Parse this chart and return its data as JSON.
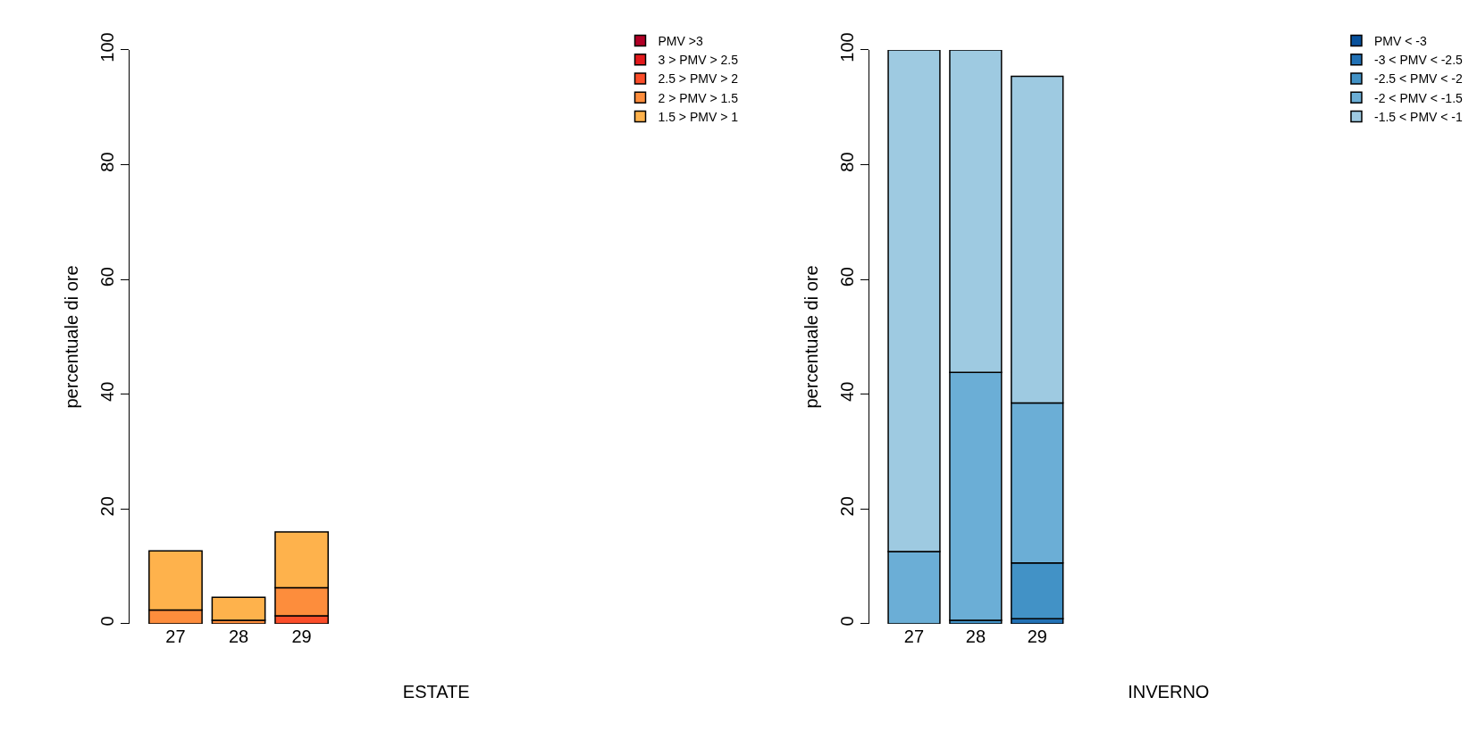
{
  "chart_data": [
    {
      "type": "bar",
      "stacked": true,
      "xlabel": "ESTATE",
      "ylabel": "percentuale di ore",
      "categories": [
        "27",
        "28",
        "29"
      ],
      "ylim": [
        0,
        100
      ],
      "yticks": [
        0,
        20,
        40,
        60,
        80,
        100
      ],
      "legend": "top right",
      "series": [
        {
          "name": "PMV >3",
          "color": "#b10026",
          "values": [
            0,
            0,
            0
          ]
        },
        {
          "name": "3 > PMV > 2.5",
          "color": "#e31a1c",
          "values": [
            0,
            0,
            0
          ]
        },
        {
          "name": "2.5 > PMV > 2",
          "color": "#fc4e2a",
          "values": [
            null,
            0,
            1.4
          ]
        },
        {
          "name": "2 > PMV > 1.5",
          "color": "#fd8d3c",
          "values": [
            2.4,
            0.6,
            4.9
          ]
        },
        {
          "name": "1.5 > PMV > 1",
          "color": "#feb24c",
          "values": [
            10.3,
            4.0,
            9.7
          ]
        }
      ]
    },
    {
      "type": "bar",
      "stacked": true,
      "xlabel": "INVERNO",
      "ylabel": "percentuale di ore",
      "categories": [
        "27",
        "28",
        "29"
      ],
      "ylim": [
        0,
        100
      ],
      "yticks": [
        0,
        20,
        40,
        60,
        80,
        100
      ],
      "legend": "top right",
      "series": [
        {
          "name": "PMV < -3",
          "color": "#08519c",
          "values": [
            0,
            0,
            0
          ]
        },
        {
          "name": "-3 < PMV < -2.5",
          "color": "#2171b5",
          "values": [
            0,
            0,
            0.9
          ]
        },
        {
          "name": "-2.5 < PMV < -2",
          "color": "#4292c6",
          "values": [
            0,
            0.6,
            9.7
          ]
        },
        {
          "name": "-2 < PMV < -1.5",
          "color": "#6baed6",
          "values": [
            12.6,
            43.2,
            27.9
          ]
        },
        {
          "name": "-1.5 < PMV < -1",
          "color": "#9ecae1",
          "values": [
            87.4,
            56.2,
            56.9
          ]
        }
      ]
    }
  ]
}
